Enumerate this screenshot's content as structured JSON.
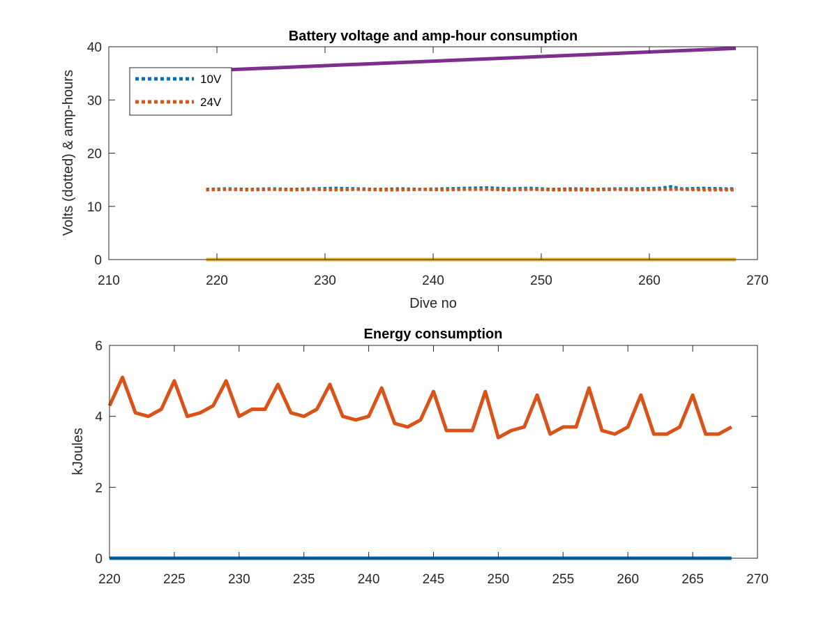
{
  "chart_data": [
    {
      "type": "line",
      "title": "Battery voltage and amp-hour consumption",
      "xlabel": "Dive no",
      "ylabel": "Volts (dotted) & amp-hours",
      "xlim": [
        210,
        270
      ],
      "ylim": [
        0,
        40
      ],
      "xticks": [
        "210",
        "220",
        "230",
        "240",
        "250",
        "260",
        "270"
      ],
      "yticks": [
        "0",
        "10",
        "20",
        "30",
        "40"
      ],
      "grid": false,
      "legend_position": "top-left",
      "series": [
        {
          "name": "10V",
          "style": "dotted",
          "color": "#0072BD",
          "x": [
            219,
            221,
            223,
            225,
            227,
            229,
            231,
            233,
            235,
            237,
            239,
            241,
            243,
            245,
            247,
            249,
            251,
            253,
            255,
            257,
            259,
            261,
            262,
            263,
            265,
            267,
            268
          ],
          "y": [
            13.2,
            13.3,
            13.2,
            13.3,
            13.2,
            13.3,
            13.4,
            13.3,
            13.2,
            13.3,
            13.2,
            13.3,
            13.4,
            13.5,
            13.3,
            13.4,
            13.2,
            13.3,
            13.2,
            13.3,
            13.3,
            13.4,
            13.7,
            13.3,
            13.4,
            13.3,
            13.3
          ]
        },
        {
          "name": "24V",
          "style": "dotted",
          "color": "#D95319",
          "x": [
            219,
            221,
            223,
            225,
            227,
            229,
            231,
            233,
            235,
            237,
            239,
            241,
            243,
            245,
            247,
            249,
            251,
            253,
            255,
            257,
            259,
            261,
            263,
            265,
            267,
            268
          ],
          "y": [
            13.1,
            13.2,
            13.1,
            13.2,
            13.1,
            13.2,
            13.1,
            13.2,
            13.1,
            13.1,
            13.2,
            13.1,
            13.2,
            13.2,
            13.1,
            13.2,
            13.1,
            13.1,
            13.1,
            13.2,
            13.1,
            13.2,
            13.2,
            13.1,
            13.1,
            13.1
          ]
        },
        {
          "style": "solid",
          "color": "#7E2F8E",
          "x": [
            219,
            268
          ],
          "y": [
            35.5,
            39.7
          ]
        },
        {
          "style": "solid",
          "color": "#EDB120",
          "x": [
            219,
            268
          ],
          "y": [
            0,
            0
          ]
        }
      ]
    },
    {
      "type": "line",
      "title": "Energy consumption",
      "xlabel": "",
      "ylabel": "kJoules",
      "xlim": [
        220,
        270
      ],
      "ylim": [
        0,
        6
      ],
      "xticks": [
        "220",
        "225",
        "230",
        "235",
        "240",
        "245",
        "250",
        "255",
        "260",
        "265",
        "270"
      ],
      "yticks": [
        "0",
        "2",
        "4",
        "6"
      ],
      "grid": false,
      "series": [
        {
          "style": "solid",
          "color": "#D95319",
          "x": [
            220,
            221,
            222,
            223,
            224,
            225,
            226,
            227,
            228,
            229,
            230,
            231,
            232,
            233,
            234,
            235,
            236,
            237,
            238,
            239,
            240,
            241,
            242,
            243,
            244,
            245,
            246,
            247,
            248,
            249,
            250,
            251,
            252,
            253,
            254,
            255,
            256,
            257,
            258,
            259,
            260,
            261,
            262,
            263,
            264,
            265,
            266,
            267,
            268
          ],
          "y": [
            4.3,
            5.1,
            4.1,
            4.0,
            4.2,
            5.0,
            4.0,
            4.1,
            4.3,
            5.0,
            4.0,
            4.2,
            4.2,
            4.9,
            4.1,
            4.0,
            4.2,
            4.9,
            4.0,
            3.9,
            4.0,
            4.8,
            3.8,
            3.7,
            3.9,
            4.7,
            3.6,
            3.6,
            3.6,
            4.7,
            3.4,
            3.6,
            3.7,
            4.6,
            3.5,
            3.7,
            3.7,
            4.8,
            3.6,
            3.5,
            3.7,
            4.6,
            3.5,
            3.5,
            3.7,
            4.6,
            3.5,
            3.5,
            3.7
          ]
        },
        {
          "style": "solid",
          "color": "#0072BD",
          "x": [
            220,
            268
          ],
          "y": [
            0,
            0
          ]
        }
      ]
    }
  ]
}
